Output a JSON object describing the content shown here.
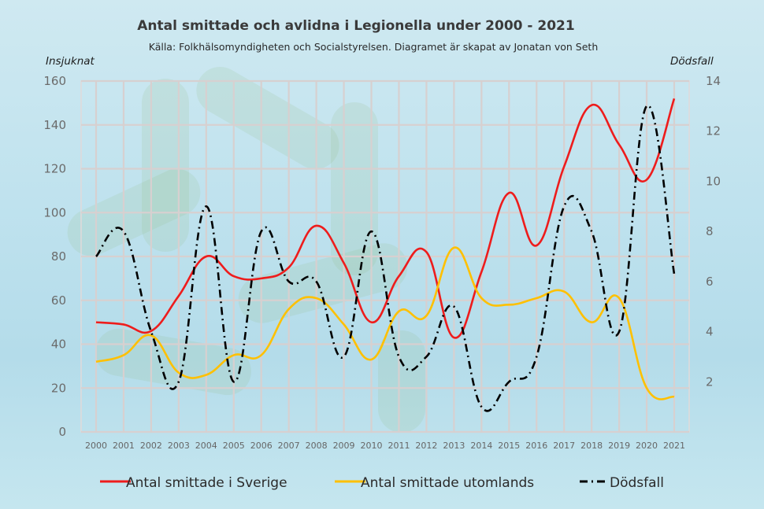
{
  "chart_data": {
    "type": "line",
    "title": "Antal smittade och avlidna i Legionella under 2000 - 2021",
    "subtitle": "Källa: Folkhälsomyndigheten och Socialstyrelsen. Diagramet är skapat av Jonatan von Seth",
    "ylabel_left": "Insjuknat",
    "ylabel_right": "Dödsfall",
    "ylim_left": [
      0,
      160
    ],
    "ylim_right": [
      0,
      14
    ],
    "yticks_left": [
      0,
      20,
      40,
      60,
      80,
      100,
      120,
      140,
      160
    ],
    "yticks_right": [
      2,
      4,
      6,
      8,
      10,
      12,
      14
    ],
    "grid": true,
    "legend_position": "bottom",
    "categories": [
      "2000",
      "2001",
      "2002",
      "2003",
      "2004",
      "2005",
      "2006",
      "2007",
      "2008",
      "2009",
      "2010",
      "2011",
      "2012",
      "2013",
      "2014",
      "2015",
      "2016",
      "2017",
      "2018",
      "2019",
      "2020",
      "2021"
    ],
    "series": [
      {
        "name": "Antal smittade i Sverige",
        "axis": "left",
        "color": "#ee1c1c",
        "style": "solid",
        "values": [
          50,
          49,
          46,
          62,
          80,
          71,
          70,
          75,
          94,
          77,
          50,
          71,
          82,
          43,
          73,
          109,
          85,
          121,
          149,
          131,
          115,
          152
        ]
      },
      {
        "name": "Antal smittade utomlands",
        "axis": "left",
        "color": "#ffc000",
        "style": "solid",
        "values": [
          32,
          35,
          44,
          27,
          26,
          35,
          35,
          56,
          61,
          49,
          33,
          55,
          53,
          84,
          61,
          58,
          61,
          64,
          50,
          61,
          20,
          16
        ]
      },
      {
        "name": "Dödsfall",
        "axis": "right",
        "color": "#000000",
        "style": "dashdot",
        "values": [
          7,
          8,
          4,
          2,
          9,
          2,
          8,
          6,
          6,
          3,
          8,
          3,
          3,
          5,
          1,
          2,
          3,
          9,
          8,
          4,
          13,
          6.3
        ]
      }
    ]
  }
}
